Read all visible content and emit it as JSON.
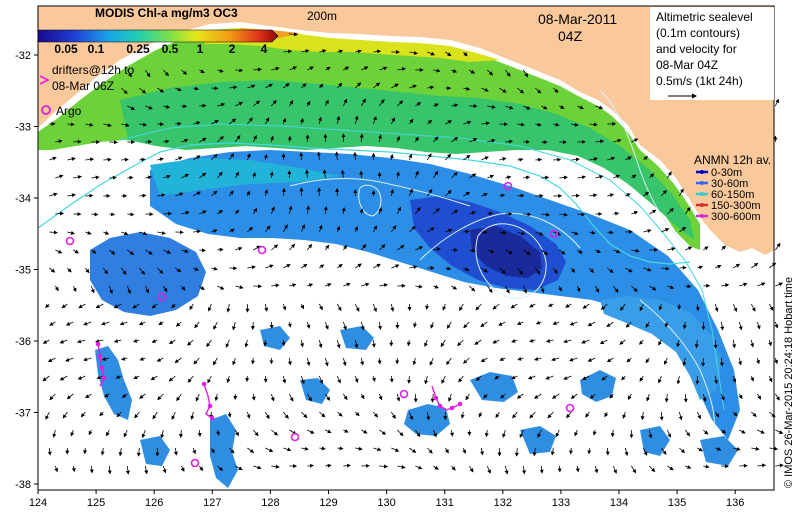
{
  "map": {
    "x_ticks": [
      "124",
      "125",
      "126",
      "127",
      "128",
      "129",
      "130",
      "131",
      "132",
      "133",
      "134",
      "135",
      "136"
    ],
    "y_ticks": [
      "-32",
      "-33",
      "-34",
      "-35",
      "-36",
      "-37",
      "-38"
    ],
    "date": "08-Mar-2011",
    "time": "04Z",
    "isobath_label": "200m",
    "credit": "© IMOS 26-Mar-2015 20:24:18 Hobart time"
  },
  "chl_legend": {
    "title": "MODIS Chl-a mg/m3 OC3",
    "ticks": [
      "0.05",
      "0.1",
      "0.25",
      "0.5",
      "1",
      "2",
      "4"
    ]
  },
  "drifters_legend": {
    "line1": "drifters@12h to",
    "line2": "08-Mar 06Z"
  },
  "argo_legend": {
    "label": "Argo"
  },
  "altimetry_legend": {
    "lines": [
      "Altimetric sealevel",
      "(0.1m contours)",
      "and velocity for",
      "08-Mar 04Z",
      "0.5m/s (1kt 24h)"
    ]
  },
  "anmn_legend": {
    "title": "ANMN 12h av.",
    "items": [
      {
        "label": "0-30m",
        "color": "#0000cc"
      },
      {
        "label": "30-60m",
        "color": "#3366ff"
      },
      {
        "label": "60-150m",
        "color": "#33cccc"
      },
      {
        "label": "150-300m",
        "color": "#cc3333"
      },
      {
        "label": "300-600m",
        "color": "#cc33cc"
      }
    ]
  },
  "colors": {
    "land": "#f9c89b",
    "argo": "#e020e0",
    "drifter": "#e020e0",
    "contour": "#bfe9ff",
    "isobath": "#46d7e0"
  }
}
